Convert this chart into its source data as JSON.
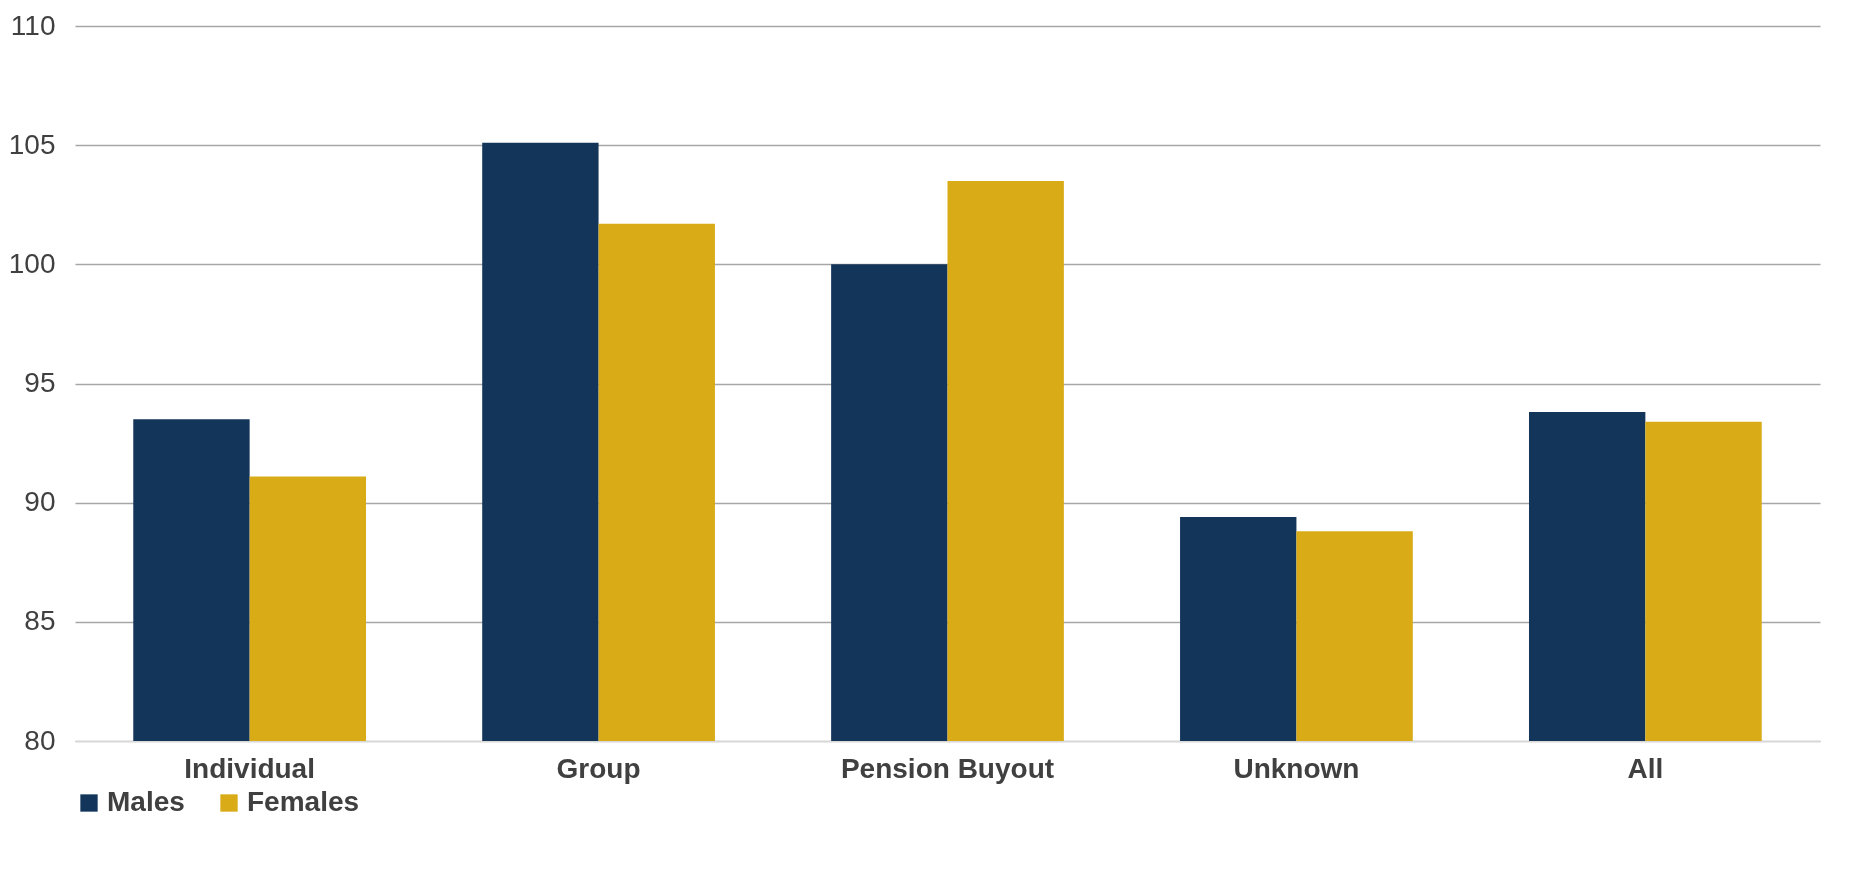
{
  "chart_data": {
    "type": "bar",
    "categories": [
      "Individual",
      "Group",
      "Pension Buyout",
      "Unknown",
      "All"
    ],
    "series": [
      {
        "name": "Males",
        "color": "#14355a",
        "values": [
          93.5,
          105.1,
          100.0,
          89.4,
          93.8
        ]
      },
      {
        "name": "Females",
        "color": "#d8ab17",
        "values": [
          91.1,
          101.7,
          103.5,
          88.8,
          93.4
        ]
      }
    ],
    "ylim": [
      80,
      110
    ],
    "yticks": [
      80,
      85,
      90,
      95,
      100,
      105,
      110
    ],
    "grid": "y",
    "legend": "bottom"
  }
}
